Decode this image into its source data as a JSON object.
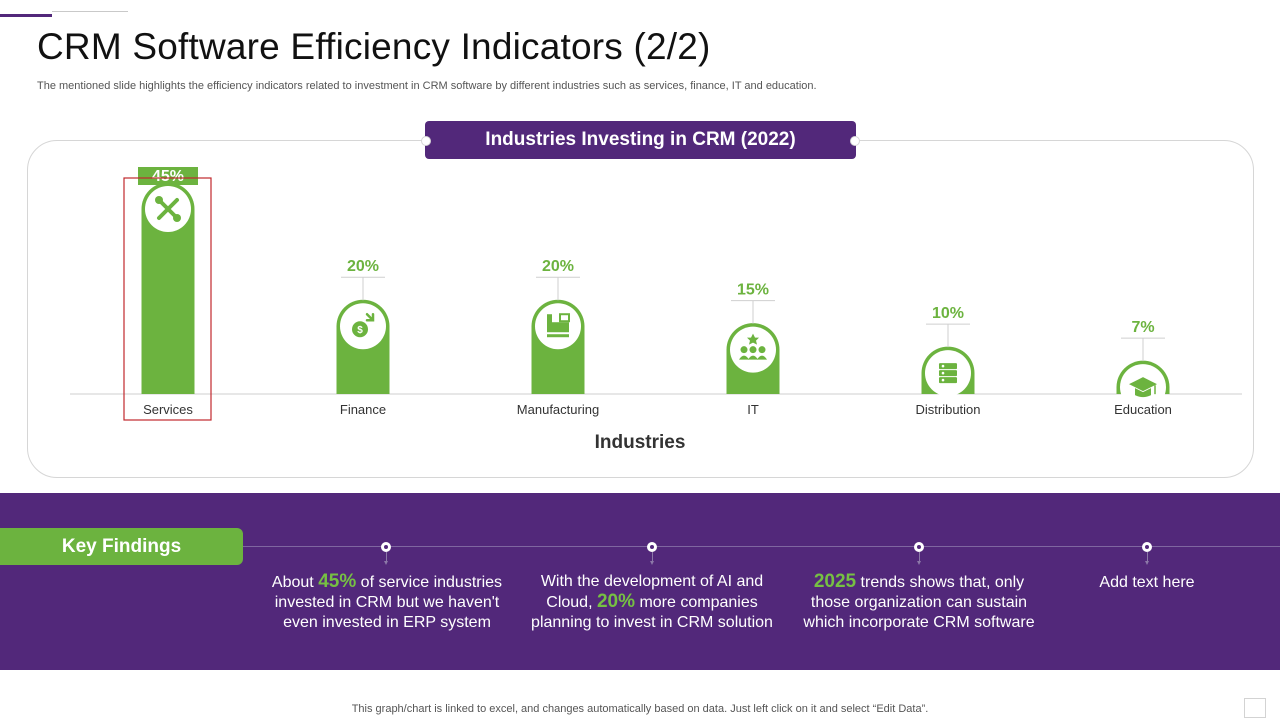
{
  "header": {
    "title": "CRM Software Efficiency Indicators (2/2)",
    "subtitle": "The mentioned slide highlights the efficiency indicators related to investment in CRM software by different industries such as services, finance, IT and education."
  },
  "chart_data": {
    "type": "bar",
    "title": "Industries Investing in CRM (2022)",
    "xlabel": "Industries",
    "ylabel": "",
    "categories": [
      "Services",
      "Finance",
      "Manufacturing",
      "IT",
      "Distribution",
      "Education"
    ],
    "values": [
      45,
      20,
      20,
      15,
      10,
      7
    ],
    "value_labels": [
      "45%",
      "20%",
      "20%",
      "15%",
      "10%",
      "7%"
    ],
    "icons": [
      "tools-icon",
      "money-growth-icon",
      "factory-icon",
      "team-icon",
      "server-icon",
      "graduation-cap-icon"
    ],
    "highlighted_category": "Services",
    "ylim": [
      0,
      45
    ],
    "grid": false,
    "bar_color": "#6cb33f",
    "highlight_color": "#c0282d"
  },
  "findings": {
    "label": "Key Findings",
    "items": [
      {
        "pre": "About ",
        "highlight": "45%",
        "post": " of service industries invested in CRM but we haven't even invested in ERP system"
      },
      {
        "pre": "With the development of AI and Cloud, ",
        "highlight": "20%",
        "post": " more companies planning to invest in CRM solution"
      },
      {
        "pre": "",
        "highlight": "2025",
        "post": " trends shows that, only those organization can sustain which incorporate CRM software"
      },
      {
        "pre": "Add text here",
        "highlight": "",
        "post": ""
      }
    ]
  },
  "footer": {
    "note": "This graph/chart is linked to excel,  and changes automatically based on data. Just left click on it and select “Edit Data”."
  },
  "colors": {
    "purple": "#52287a",
    "green": "#6cb33f",
    "highlight_green": "#76c043"
  }
}
